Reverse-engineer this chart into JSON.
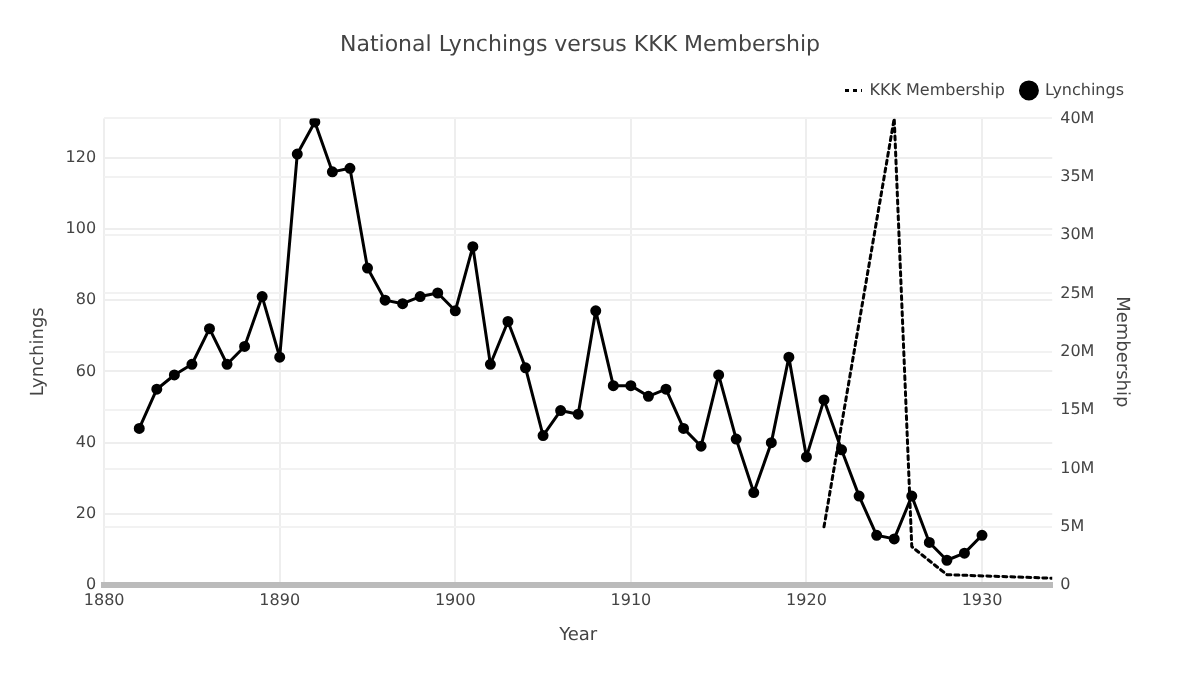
{
  "chart_data": {
    "type": "line",
    "title": "National Lynchings versus KKK Membership",
    "xlabel": "Year",
    "ylabel": "Lynchings",
    "y2label": "Membership",
    "xlim": [
      1880,
      1934
    ],
    "xticks": [
      1880,
      1890,
      1900,
      1910,
      1920,
      1930
    ],
    "ylim": [
      0,
      131
    ],
    "yticks": [
      0,
      20,
      40,
      60,
      80,
      100,
      120
    ],
    "y2lim": [
      0,
      40000000
    ],
    "y2ticks": [
      {
        "value": 0,
        "label": "0"
      },
      {
        "value": 5000000,
        "label": "5M"
      },
      {
        "value": 10000000,
        "label": "10M"
      },
      {
        "value": 15000000,
        "label": "15M"
      },
      {
        "value": 20000000,
        "label": "20M"
      },
      {
        "value": 25000000,
        "label": "25M"
      },
      {
        "value": 30000000,
        "label": "30M"
      },
      {
        "value": 35000000,
        "label": "35M"
      },
      {
        "value": 40000000,
        "label": "40M"
      }
    ],
    "grid": true,
    "legend": "top right",
    "series": [
      {
        "name": "KKK Membership",
        "axis": "y2",
        "color": "#000000",
        "line_style": "dotted",
        "marker": "none",
        "x": [
          1921,
          1925,
          1926,
          1928,
          1934
        ],
        "values": [
          5000000,
          40000000,
          3300000,
          900000,
          600000
        ]
      },
      {
        "name": "Lynchings",
        "color": "#000000",
        "line_style": "solid",
        "marker": "circle",
        "x": [
          1882,
          1883,
          1884,
          1885,
          1886,
          1887,
          1888,
          1889,
          1890,
          1891,
          1892,
          1893,
          1894,
          1895,
          1896,
          1897,
          1898,
          1899,
          1900,
          1901,
          1902,
          1903,
          1904,
          1905,
          1906,
          1907,
          1908,
          1909,
          1910,
          1911,
          1912,
          1913,
          1914,
          1915,
          1916,
          1917,
          1918,
          1919,
          1920,
          1921,
          1922,
          1923,
          1924,
          1925,
          1926,
          1927,
          1928,
          1929,
          1930
        ],
        "values": [
          44,
          55,
          59,
          62,
          72,
          62,
          67,
          81,
          64,
          121,
          130,
          116,
          117,
          89,
          80,
          79,
          81,
          82,
          77,
          95,
          62,
          74,
          61,
          42,
          49,
          48,
          77,
          56,
          56,
          53,
          55,
          44,
          39,
          59,
          41,
          26,
          40,
          64,
          36,
          52,
          38,
          25,
          14,
          13,
          25,
          12,
          7,
          9,
          14
        ]
      }
    ]
  }
}
